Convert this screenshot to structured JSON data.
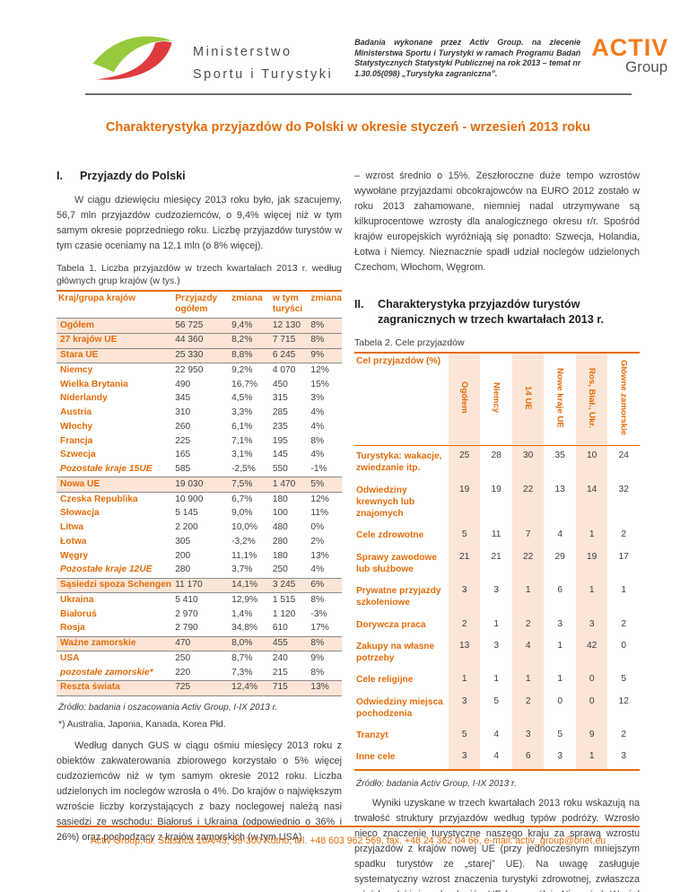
{
  "header": {
    "ministry_line1": "Ministerstwo",
    "ministry_line2": "Sportu i Turystyki",
    "note": "Badania wykonane przez Activ Group. na zlecenie Ministerstwa Sportu i Turystyki w ramach Programu Badań Statystycznych Statystyki Publicznej na rok 2013 – temat nr 1.30.05(098) „Turystyka zagraniczna”.",
    "activ_line1": "ACTIV",
    "activ_line2": "Group"
  },
  "title": "Charakterystyka przyjazdów do Polski w okresie styczeń - wrzesień 2013 roku",
  "section1": {
    "heading_num": "I.",
    "heading": "Przyjazdy do Polski",
    "para1": "W ciągu dziewięciu miesięcy 2013 roku było, jak szacujemy, 56,7 mln przyjazdów cudzoziemców, o 9,4% więcej niż w tym samym okresie poprzedniego roku. Liczbę przyjazdów turystów w tym czasie oceniamy na 12,1 mln (o 8% więcej).",
    "para2": "Według danych GUS w ciągu ośmiu miesięcy 2013 roku z obiektów zakwaterowania zbiorowego korzystało o 5% więcej cudzoziemców niż w tym samym okresie 2012 roku. Liczba udzielonych im noclegów wzrosła o 4%. Do krajów o największym wzroście liczby korzystających z bazy noclegowej należą nasi sąsiedzi ze wschodu: Białoruś i Ukraina (odpowiednio o 36% i 26%) oraz pochodzący z krajów zamorskich (w tym USA)"
  },
  "table1": {
    "caption": "Tabela 1. Liczba przyjazdów w trzech kwartałach 2013 r. według głównych grup krajów (w tys.)",
    "columns": [
      "Kraj/grupa krajów",
      "Przyjazdy ogółem",
      "zmiana",
      "w tym turyści",
      "zmiana"
    ],
    "rows": [
      {
        "label": "Ogółem",
        "values": [
          "56 725",
          "9,4%",
          "12 130",
          "8%"
        ],
        "style": "group"
      },
      {
        "label": "27 krajów UE",
        "values": [
          "44 360",
          "8,2%",
          "7 715",
          "8%"
        ],
        "style": "group"
      },
      {
        "label": "Stara UE",
        "values": [
          "25 330",
          "8,8%",
          "6 245",
          "9%"
        ],
        "style": "group"
      },
      {
        "label": "Niemcy",
        "values": [
          "22 950",
          "9,2%",
          "4 070",
          "12%"
        ],
        "style": "normal"
      },
      {
        "label": "Wielka Brytania",
        "values": [
          "490",
          "16,7%",
          "450",
          "15%"
        ],
        "style": "normal"
      },
      {
        "label": "Niderlandy",
        "values": [
          "345",
          "4,5%",
          "315",
          "3%"
        ],
        "style": "normal"
      },
      {
        "label": "Austria",
        "values": [
          "310",
          "3,3%",
          "285",
          "4%"
        ],
        "style": "normal"
      },
      {
        "label": "Włochy",
        "values": [
          "260",
          "6,1%",
          "235",
          "4%"
        ],
        "style": "normal"
      },
      {
        "label": "Francja",
        "values": [
          "225",
          "7,1%",
          "195",
          "8%"
        ],
        "style": "normal"
      },
      {
        "label": "Szwecja",
        "values": [
          "165",
          "3,1%",
          "145",
          "4%"
        ],
        "style": "normal"
      },
      {
        "label": "Pozostałe kraje 15UE",
        "values": [
          "585",
          "-2,5%",
          "550",
          "-1%"
        ],
        "style": "italic"
      },
      {
        "label": "Nowa UE",
        "values": [
          "19 030",
          "7,5%",
          "1 470",
          "5%"
        ],
        "style": "group"
      },
      {
        "label": "Czeska Republika",
        "values": [
          "10 900",
          "6,7%",
          "180",
          "12%"
        ],
        "style": "normal"
      },
      {
        "label": "Słowacja",
        "values": [
          "5 145",
          "9,0%",
          "100",
          "11%"
        ],
        "style": "normal"
      },
      {
        "label": "Litwa",
        "values": [
          "2 200",
          "10,0%",
          "480",
          "0%"
        ],
        "style": "normal"
      },
      {
        "label": "Łotwa",
        "values": [
          "305",
          "-3,2%",
          "280",
          "2%"
        ],
        "style": "normal"
      },
      {
        "label": "Węgry",
        "values": [
          "200",
          "11,1%",
          "180",
          "13%"
        ],
        "style": "normal"
      },
      {
        "label": "Pozostałe kraje 12UE",
        "values": [
          "280",
          "3,7%",
          "250",
          "4%"
        ],
        "style": "italic"
      },
      {
        "label": "Sąsiedzi spoza Schengen",
        "values": [
          "11 170",
          "14,1%",
          "3 245",
          "6%"
        ],
        "style": "group"
      },
      {
        "label": "Ukraina",
        "values": [
          "5 410",
          "12,9%",
          "1 515",
          "8%"
        ],
        "style": "normal"
      },
      {
        "label": "Białoruś",
        "values": [
          "2 970",
          "1,4%",
          "1 120",
          "-3%"
        ],
        "style": "normal"
      },
      {
        "label": "Rosja",
        "values": [
          "2 790",
          "34,8%",
          "610",
          "17%"
        ],
        "style": "normal"
      },
      {
        "label": "Ważne zamorskie",
        "values": [
          "470",
          "8,0%",
          "455",
          "8%"
        ],
        "style": "group"
      },
      {
        "label": "USA",
        "values": [
          "250",
          "8,7%",
          "240",
          "9%"
        ],
        "style": "normal"
      },
      {
        "label": "pozostałe zamorskie*",
        "values": [
          "220",
          "7,3%",
          "215",
          "8%"
        ],
        "style": "italic"
      },
      {
        "label": "Reszta świata",
        "values": [
          "725",
          "12,4%",
          "715",
          "13%"
        ],
        "style": "group"
      }
    ],
    "source": "Źródło: badania i oszacowania Activ Group, I-IX 2013 r.",
    "footnote": "*) Australia, Japonia, Kanada, Korea Płd."
  },
  "right_column": {
    "para1": "– wzrost średnio o 15%. Zeszłoroczne duże tempo wzrostów wywołane przyjazdami obcokrajowców na EURO 2012 zostało w roku 2013 zahamowane, niemniej nadal utrzymywane są kilkuprocentowe wzrosty dla analogicznego okresu r/r. Spośród krajów europejskich wyróżniają się ponadto: Szwecja, Holandia, Łotwa i Niemcy. Nieznacznie spadł udział noclegów udzielonych Czechom, Włochom, Węgrom.",
    "para2": "Wyniki uzyskane w trzech kwartałach 2013 roku wskazują na trwałość struktury przyjazdów według typów podróży. Wzrosło nieco znaczenie turystyczne naszego kraju za sprawą wzrostu przyjazdów z krajów nowej UE (przy jednoczesnym mniejszym spadku turystów ze „starej” UE). Na uwagę zasługuje systematyczny wzrost znaczenia turystyki zdrowotnej, zwłaszcza wśród podróżujących z krajów UE (szczególnie Niemców). Wzrósł również udział  przyjazdów na zakupy, ale"
  },
  "section2": {
    "heading_num": "II.",
    "heading": "Charakterystyka przyjazdów turystów zagranicznych w trzech kwartałach 2013 r."
  },
  "table2": {
    "caption": "Tabela 2. Cele przyjazdów",
    "corner_label": "Cel przyjazdów (%)",
    "columns": [
      "Ogółem",
      "Niemcy",
      "14 UE",
      "Nowe kraje UE",
      "Ros, Biał., Ukr.",
      "Główne zamorskie"
    ],
    "shaded_columns": [
      0,
      2,
      4
    ],
    "rows": [
      {
        "label": "Turystyka: wakacje, zwiedzanie itp.",
        "values": [
          25,
          28,
          30,
          35,
          10,
          24
        ]
      },
      {
        "label": "Odwiedziny krewnych lub znajomych",
        "values": [
          19,
          19,
          22,
          13,
          14,
          32
        ]
      },
      {
        "label": "Cele zdrowotne",
        "values": [
          5,
          11,
          7,
          4,
          1,
          2
        ]
      },
      {
        "label": "Sprawy zawodowe lub służbowe",
        "values": [
          21,
          21,
          22,
          29,
          19,
          17
        ]
      },
      {
        "label": "Prywatne przyjazdy szkoleniowe",
        "values": [
          3,
          3,
          1,
          6,
          1,
          1
        ]
      },
      {
        "label": "Dorywcza praca",
        "values": [
          2,
          1,
          2,
          3,
          3,
          2
        ]
      },
      {
        "label": "Zakupy na własne potrzeby",
        "values": [
          13,
          3,
          4,
          1,
          42,
          0
        ]
      },
      {
        "label": "Cele religijne",
        "values": [
          1,
          1,
          1,
          1,
          0,
          5
        ]
      },
      {
        "label": "Odwiedziny miejsca pochodzenia",
        "values": [
          3,
          5,
          2,
          0,
          0,
          12
        ]
      },
      {
        "label": "Tranzyt",
        "values": [
          5,
          4,
          3,
          5,
          9,
          2
        ]
      },
      {
        "label": "Inne cele",
        "values": [
          3,
          4,
          6,
          3,
          1,
          3
        ]
      }
    ],
    "source": "Źródło: badania Activ Group, I-IX 2013 r."
  },
  "footer": {
    "text": "Activ Group, ul. Staszica 10A/43,  99-300 Kutno,  tel. +48 603 962 569, fax. +48 24 362 04 66, e-mail: activ_group@onet.eu"
  },
  "colors": {
    "accent_orange": "#E36C0A",
    "row_highlight": "#FBE5D6",
    "body_text": "#404040"
  }
}
